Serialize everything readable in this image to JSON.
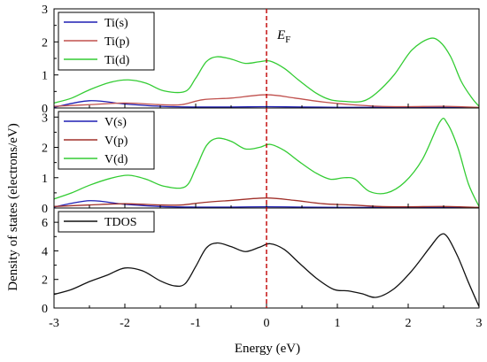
{
  "chart_data": {
    "type": "line",
    "xlabel": "Energy (eV)",
    "ylabel": "Density of states (electrons/eV)",
    "xlim": [
      -3,
      3
    ],
    "x_ticks": [
      "-3",
      "-2",
      "-1",
      "0",
      "1",
      "2",
      "3"
    ],
    "fermi_label": "E",
    "fermi_sub": "F",
    "fermi_x": 0,
    "grid": false,
    "panels": [
      {
        "ylim": [
          0,
          3
        ],
        "y_ticks": [
          "0",
          "1",
          "2",
          "3"
        ],
        "legend_position": "top-left",
        "series": [
          {
            "name": "Ti(s)",
            "color": "#1f1fb4",
            "points": [
              [
                -3,
                0.02
              ],
              [
                -2.5,
                0.22
              ],
              [
                -2,
                0.12
              ],
              [
                -1.5,
                0.05
              ],
              [
                -1,
                0.03
              ],
              [
                -0.5,
                0.03
              ],
              [
                0,
                0.04
              ],
              [
                0.5,
                0.03
              ],
              [
                1,
                0.02
              ],
              [
                1.5,
                0.02
              ],
              [
                2,
                0.02
              ],
              [
                2.5,
                0.02
              ],
              [
                3,
                0.01
              ]
            ]
          },
          {
            "name": "Ti(p)",
            "color": "#c0504d",
            "points": [
              [
                -3,
                0.05
              ],
              [
                -2.5,
                0.1
              ],
              [
                -2,
                0.15
              ],
              [
                -1.5,
                0.1
              ],
              [
                -1.2,
                0.1
              ],
              [
                -0.9,
                0.25
              ],
              [
                -0.5,
                0.3
              ],
              [
                0,
                0.4
              ],
              [
                0.4,
                0.3
              ],
              [
                0.8,
                0.18
              ],
              [
                1.2,
                0.1
              ],
              [
                1.6,
                0.05
              ],
              [
                2,
                0.04
              ],
              [
                2.5,
                0.05
              ],
              [
                3,
                0.02
              ]
            ]
          },
          {
            "name": "Ti(d)",
            "color": "#33cc33",
            "points": [
              [
                -3,
                0.15
              ],
              [
                -2.75,
                0.3
              ],
              [
                -2.5,
                0.55
              ],
              [
                -2.2,
                0.78
              ],
              [
                -1.95,
                0.85
              ],
              [
                -1.7,
                0.75
              ],
              [
                -1.45,
                0.52
              ],
              [
                -1.15,
                0.5
              ],
              [
                -1.0,
                0.9
              ],
              [
                -0.85,
                1.4
              ],
              [
                -0.7,
                1.55
              ],
              [
                -0.5,
                1.48
              ],
              [
                -0.3,
                1.35
              ],
              [
                -0.1,
                1.4
              ],
              [
                0.05,
                1.42
              ],
              [
                0.25,
                1.2
              ],
              [
                0.45,
                0.85
              ],
              [
                0.7,
                0.45
              ],
              [
                0.9,
                0.25
              ],
              [
                1.1,
                0.2
              ],
              [
                1.35,
                0.2
              ],
              [
                1.55,
                0.45
              ],
              [
                1.8,
                1.0
              ],
              [
                2.05,
                1.75
              ],
              [
                2.3,
                2.1
              ],
              [
                2.45,
                2.0
              ],
              [
                2.6,
                1.55
              ],
              [
                2.75,
                0.8
              ],
              [
                2.9,
                0.3
              ],
              [
                3,
                0.05
              ]
            ]
          }
        ]
      },
      {
        "ylim": [
          0,
          3.3
        ],
        "y_ticks": [
          "0",
          "1",
          "2",
          "3"
        ],
        "legend_position": "top-left",
        "series": [
          {
            "name": "V(s)",
            "color": "#1f1fb4",
            "points": [
              [
                -3,
                0.03
              ],
              [
                -2.5,
                0.24
              ],
              [
                -2,
                0.12
              ],
              [
                -1.5,
                0.05
              ],
              [
                -1,
                0.03
              ],
              [
                -0.5,
                0.03
              ],
              [
                0,
                0.04
              ],
              [
                0.5,
                0.03
              ],
              [
                1,
                0.02
              ],
              [
                1.5,
                0.02
              ],
              [
                2,
                0.02
              ],
              [
                2.5,
                0.02
              ],
              [
                3,
                0.01
              ]
            ]
          },
          {
            "name": "V(p)",
            "color": "#a0302a",
            "points": [
              [
                -3,
                0.05
              ],
              [
                -2.5,
                0.1
              ],
              [
                -2,
                0.14
              ],
              [
                -1.5,
                0.1
              ],
              [
                -1.2,
                0.1
              ],
              [
                -0.9,
                0.18
              ],
              [
                -0.5,
                0.25
              ],
              [
                0,
                0.33
              ],
              [
                0.4,
                0.25
              ],
              [
                0.8,
                0.14
              ],
              [
                1.2,
                0.1
              ],
              [
                1.6,
                0.05
              ],
              [
                2,
                0.04
              ],
              [
                2.5,
                0.05
              ],
              [
                3,
                0.02
              ]
            ]
          },
          {
            "name": "V(d)",
            "color": "#33cc33",
            "points": [
              [
                -3,
                0.3
              ],
              [
                -2.75,
                0.5
              ],
              [
                -2.5,
                0.75
              ],
              [
                -2.2,
                0.98
              ],
              [
                -1.95,
                1.08
              ],
              [
                -1.7,
                0.95
              ],
              [
                -1.45,
                0.72
              ],
              [
                -1.15,
                0.7
              ],
              [
                -1.0,
                1.3
              ],
              [
                -0.85,
                2.05
              ],
              [
                -0.7,
                2.3
              ],
              [
                -0.5,
                2.2
              ],
              [
                -0.3,
                1.95
              ],
              [
                -0.1,
                2.0
              ],
              [
                0.05,
                2.1
              ],
              [
                0.25,
                1.9
              ],
              [
                0.45,
                1.55
              ],
              [
                0.7,
                1.15
              ],
              [
                0.9,
                0.95
              ],
              [
                1.1,
                1.0
              ],
              [
                1.25,
                0.95
              ],
              [
                1.45,
                0.55
              ],
              [
                1.7,
                0.5
              ],
              [
                1.95,
                0.85
              ],
              [
                2.2,
                1.6
              ],
              [
                2.45,
                2.85
              ],
              [
                2.55,
                2.8
              ],
              [
                2.7,
                2.0
              ],
              [
                2.85,
                0.8
              ],
              [
                3,
                0.05
              ]
            ]
          }
        ]
      },
      {
        "ylim": [
          0,
          7
        ],
        "y_ticks": [
          "0",
          "2",
          "4",
          "6"
        ],
        "legend_position": "top-left",
        "series": [
          {
            "name": "TDOS",
            "color": "#111111",
            "points": [
              [
                -3,
                0.95
              ],
              [
                -2.75,
                1.3
              ],
              [
                -2.5,
                1.85
              ],
              [
                -2.25,
                2.3
              ],
              [
                -2.0,
                2.8
              ],
              [
                -1.75,
                2.6
              ],
              [
                -1.5,
                1.9
              ],
              [
                -1.3,
                1.55
              ],
              [
                -1.15,
                1.7
              ],
              [
                -1.0,
                2.9
              ],
              [
                -0.85,
                4.2
              ],
              [
                -0.7,
                4.55
              ],
              [
                -0.5,
                4.3
              ],
              [
                -0.3,
                3.95
              ],
              [
                -0.1,
                4.25
              ],
              [
                0.05,
                4.5
              ],
              [
                0.25,
                4.1
              ],
              [
                0.45,
                3.2
              ],
              [
                0.7,
                2.1
              ],
              [
                0.95,
                1.3
              ],
              [
                1.15,
                1.2
              ],
              [
                1.35,
                1.0
              ],
              [
                1.55,
                0.75
              ],
              [
                1.8,
                1.35
              ],
              [
                2.05,
                2.6
              ],
              [
                2.3,
                4.2
              ],
              [
                2.45,
                5.1
              ],
              [
                2.55,
                5.0
              ],
              [
                2.7,
                3.6
              ],
              [
                2.85,
                1.8
              ],
              [
                3,
                0.1
              ]
            ]
          }
        ]
      }
    ]
  }
}
